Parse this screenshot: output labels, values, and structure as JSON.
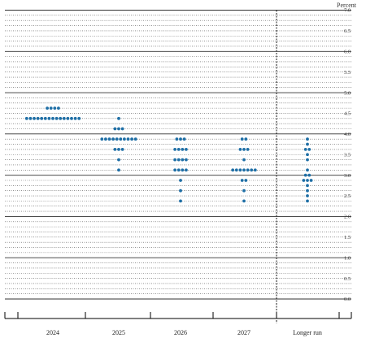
{
  "chart_data": {
    "type": "scatter",
    "title": "",
    "ylabel": "Percent",
    "xlabel": "",
    "ylim": [
      0,
      7
    ],
    "y_ticks": [
      "0.0",
      "0.5",
      "1.0",
      "1.5",
      "2.0",
      "2.5",
      "3.0",
      "3.5",
      "4.0",
      "4.5",
      "5.0",
      "5.5",
      "6.0",
      "6.5",
      "7.0"
    ],
    "categories": [
      "2024",
      "2025",
      "2026",
      "2027",
      "Longer run"
    ],
    "grid": true,
    "colors": {
      "dot": "#1f6fa6",
      "major_grid": "#333333",
      "minor_grid": "#555555",
      "divider": "#000000"
    },
    "series": [
      {
        "category": "2024",
        "points": [
          {
            "y": 4.625,
            "count": 4
          },
          {
            "y": 4.375,
            "count": 15
          }
        ]
      },
      {
        "category": "2025",
        "points": [
          {
            "y": 4.375,
            "count": 1
          },
          {
            "y": 4.125,
            "count": 3
          },
          {
            "y": 3.875,
            "count": 10
          },
          {
            "y": 3.625,
            "count": 3
          },
          {
            "y": 3.375,
            "count": 1
          },
          {
            "y": 3.125,
            "count": 1
          }
        ]
      },
      {
        "category": "2026",
        "points": [
          {
            "y": 3.875,
            "count": 3
          },
          {
            "y": 3.625,
            "count": 4
          },
          {
            "y": 3.375,
            "count": 4
          },
          {
            "y": 3.125,
            "count": 4
          },
          {
            "y": 2.875,
            "count": 1
          },
          {
            "y": 2.625,
            "count": 1
          },
          {
            "y": 2.375,
            "count": 1
          }
        ]
      },
      {
        "category": "2027",
        "points": [
          {
            "y": 3.875,
            "count": 2
          },
          {
            "y": 3.625,
            "count": 3
          },
          {
            "y": 3.375,
            "count": 1
          },
          {
            "y": 3.125,
            "count": 7
          },
          {
            "y": 2.875,
            "count": 2
          },
          {
            "y": 2.625,
            "count": 1
          },
          {
            "y": 2.375,
            "count": 1
          }
        ]
      },
      {
        "category": "Longer run",
        "points": [
          {
            "y": 3.875,
            "count": 1
          },
          {
            "y": 3.75,
            "count": 1
          },
          {
            "y": 3.625,
            "count": 2
          },
          {
            "y": 3.5,
            "count": 1
          },
          {
            "y": 3.375,
            "count": 1
          },
          {
            "y": 3.125,
            "count": 1
          },
          {
            "y": 3.0,
            "count": 2
          },
          {
            "y": 2.875,
            "count": 3
          },
          {
            "y": 2.75,
            "count": 1
          },
          {
            "y": 2.625,
            "count": 1
          },
          {
            "y": 2.5,
            "count": 1
          },
          {
            "y": 2.375,
            "count": 1
          }
        ]
      }
    ]
  }
}
